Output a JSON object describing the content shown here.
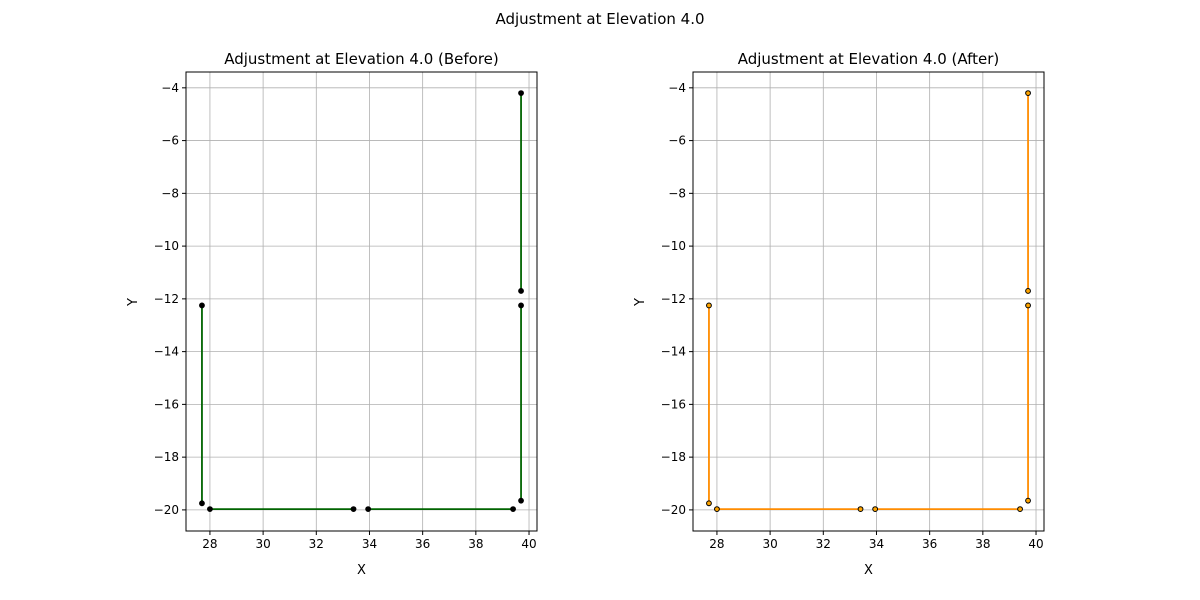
{
  "figure": {
    "suptitle": "Adjustment at Elevation 4.0"
  },
  "chart_data": [
    {
      "type": "line",
      "title": "Adjustment at Elevation 4.0 (Before)",
      "xlabel": "X",
      "ylabel": "Y",
      "xlim": [
        27.1,
        40.3
      ],
      "ylim": [
        -20.8,
        -3.4
      ],
      "xticks": [
        28,
        30,
        32,
        34,
        36,
        38,
        40
      ],
      "yticks": [
        -20,
        -18,
        -16,
        -14,
        -12,
        -10,
        -8,
        -6,
        -4
      ],
      "grid": true,
      "line_color": "#006400",
      "marker_color": "#000000",
      "segments": [
        [
          [
            27.7,
            -12.25
          ],
          [
            27.7,
            -19.75
          ]
        ],
        [
          [
            28.0,
            -19.97
          ],
          [
            33.4,
            -19.97
          ]
        ],
        [
          [
            33.95,
            -19.97
          ],
          [
            39.4,
            -19.97
          ]
        ],
        [
          [
            39.7,
            -19.65
          ],
          [
            39.7,
            -12.25
          ]
        ],
        [
          [
            39.7,
            -11.7
          ],
          [
            39.7,
            -4.2
          ]
        ]
      ]
    },
    {
      "type": "line",
      "title": "Adjustment at Elevation 4.0 (After)",
      "xlabel": "X",
      "ylabel": "Y",
      "xlim": [
        27.1,
        40.3
      ],
      "ylim": [
        -20.8,
        -3.4
      ],
      "xticks": [
        28,
        30,
        32,
        34,
        36,
        38,
        40
      ],
      "yticks": [
        -20,
        -18,
        -16,
        -14,
        -12,
        -10,
        -8,
        -6,
        -4
      ],
      "grid": true,
      "line_color": "#ff8c00",
      "marker_color": "#ffa500",
      "segments": [
        [
          [
            27.7,
            -12.25
          ],
          [
            27.7,
            -19.75
          ]
        ],
        [
          [
            28.0,
            -19.97
          ],
          [
            33.4,
            -19.97
          ]
        ],
        [
          [
            33.95,
            -19.97
          ],
          [
            39.4,
            -19.97
          ]
        ],
        [
          [
            39.7,
            -19.65
          ],
          [
            39.7,
            -12.25
          ]
        ],
        [
          [
            39.7,
            -11.7
          ],
          [
            39.7,
            -4.2
          ]
        ]
      ]
    }
  ]
}
